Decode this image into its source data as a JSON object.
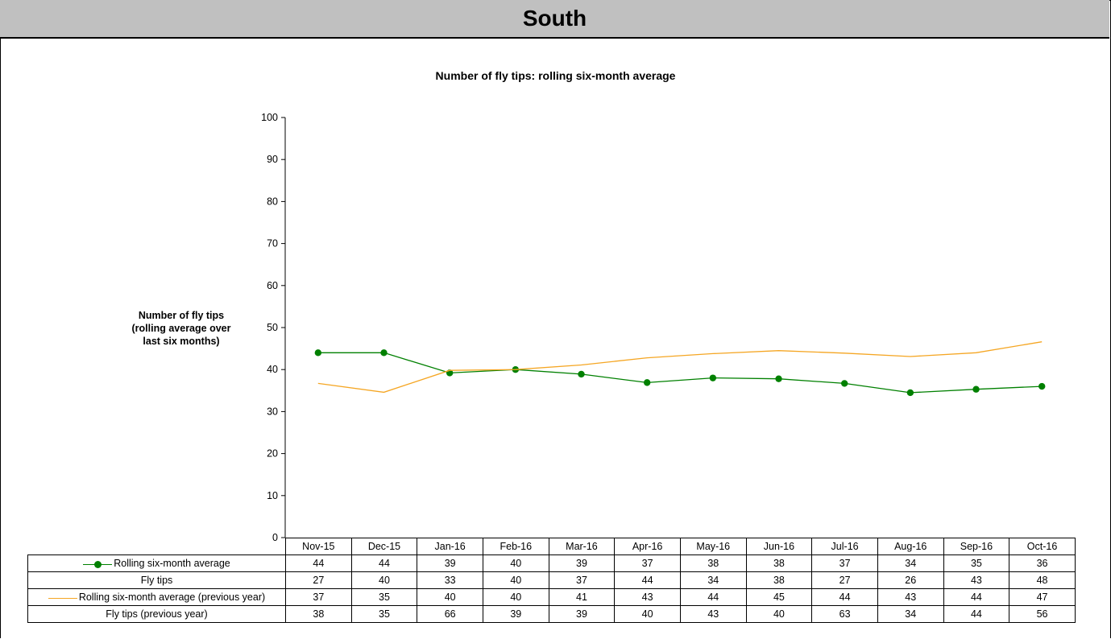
{
  "header": {
    "region": "South"
  },
  "chart_data": {
    "type": "line",
    "title": "Number of fly tips: rolling six-month average",
    "ylabel_lines": [
      "Number of fly tips",
      "(rolling average over",
      "last six months)"
    ],
    "xlabel": "",
    "ylim": [
      0,
      100
    ],
    "yticks": [
      0,
      10,
      20,
      30,
      40,
      50,
      60,
      70,
      80,
      90,
      100
    ],
    "categories": [
      "Nov-15",
      "Dec-15",
      "Jan-16",
      "Feb-16",
      "Mar-16",
      "Apr-16",
      "May-16",
      "Jun-16",
      "Jul-16",
      "Aug-16",
      "Sep-16",
      "Oct-16"
    ],
    "legend_placement": "table-below",
    "grid": false,
    "series": [
      {
        "name": "Rolling six-month average",
        "plotted": true,
        "color": "#008000",
        "marker": "circle",
        "values": [
          44,
          44,
          39.2,
          40,
          38.9,
          36.9,
          38,
          37.8,
          36.7,
          34.5,
          35.3,
          36
        ],
        "display": [
          "44",
          "44",
          "39",
          "40",
          "39",
          "37",
          "38",
          "38",
          "37",
          "34",
          "35",
          "36"
        ]
      },
      {
        "name": "Fly tips",
        "plotted": false,
        "color": "",
        "display": [
          "27",
          "40",
          "33",
          "40",
          "37",
          "44",
          "34",
          "38",
          "27",
          "26",
          "43",
          "48"
        ]
      },
      {
        "name": "Rolling six-month average (previous year)",
        "plotted": true,
        "color": "#f5a623",
        "marker": "none",
        "values": [
          36.7,
          34.6,
          39.8,
          40,
          41.1,
          42.8,
          43.8,
          44.5,
          43.9,
          43.1,
          44,
          46.6
        ],
        "display": [
          "37",
          "35",
          "40",
          "40",
          "41",
          "43",
          "44",
          "45",
          "44",
          "43",
          "44",
          "47"
        ]
      },
      {
        "name": "Fly tips (previous year)",
        "plotted": false,
        "color": "",
        "display": [
          "38",
          "35",
          "66",
          "39",
          "39",
          "40",
          "43",
          "40",
          "63",
          "34",
          "44",
          "56"
        ]
      }
    ]
  }
}
